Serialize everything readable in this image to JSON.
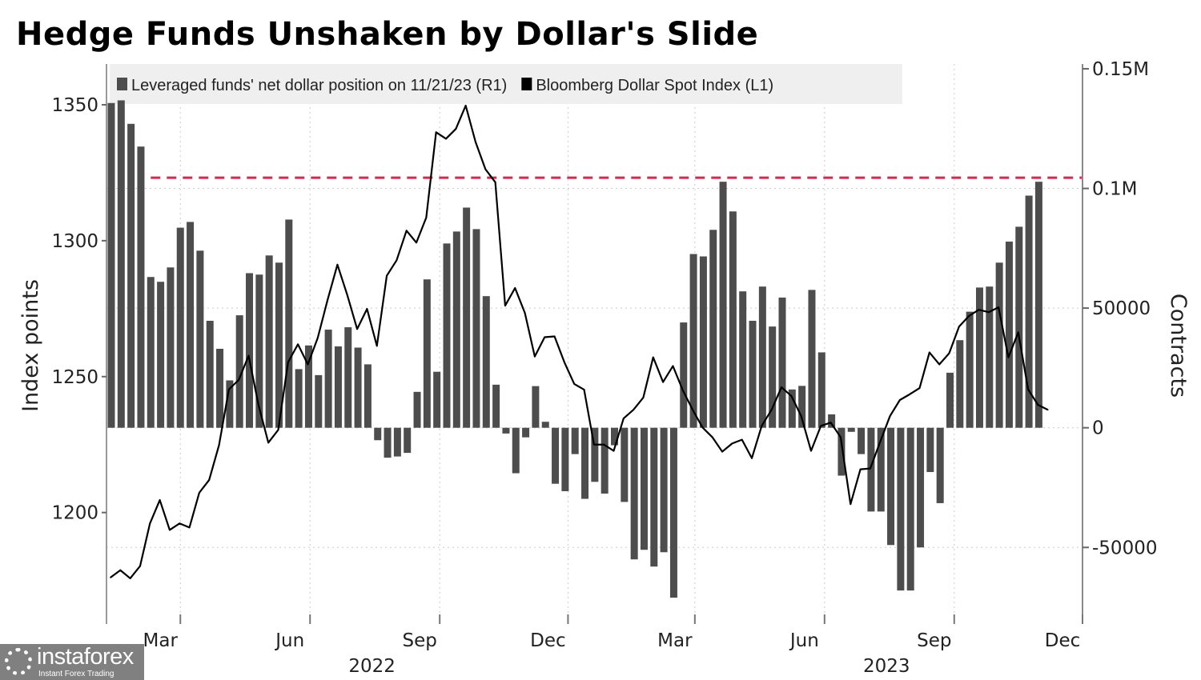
{
  "title": "Hedge Funds Unshaken by Dollar's Slide",
  "watermark": {
    "name": "instaforex",
    "tagline": "Instant Forex Trading"
  },
  "chart_data": {
    "type": "bar+line",
    "title": "Hedge Funds Unshaken by Dollar's Slide",
    "ylabel_left": "Index points",
    "ylabel_right": "Contracts",
    "left_ylim": [
      1159,
      1365
    ],
    "right_ylim": [
      -82000,
      152000
    ],
    "left_ticks": [
      {
        "v": 1200,
        "label": "1200"
      },
      {
        "v": 1250,
        "label": "1250"
      },
      {
        "v": 1300,
        "label": "1300"
      },
      {
        "v": 1350,
        "label": "1350"
      }
    ],
    "right_ticks": [
      {
        "v": -50000,
        "label": "-50000"
      },
      {
        "v": 0,
        "label": "0"
      },
      {
        "v": 50000,
        "label": "50000"
      },
      {
        "v": 100000,
        "label": "0.1M"
      },
      {
        "v": 150000,
        "label": "0.15M"
      }
    ],
    "x_start": "2022-01-11",
    "x_end": "2023-12-01",
    "x_step_days": 7,
    "x_ticks": [
      {
        "date": "2022-03-01",
        "label": "Mar"
      },
      {
        "date": "2022-06-01",
        "label": "Jun"
      },
      {
        "date": "2022-09-01",
        "label": "Sep"
      },
      {
        "date": "2022-12-01",
        "label": "Dec"
      },
      {
        "date": "2023-03-01",
        "label": "Mar"
      },
      {
        "date": "2023-06-01",
        "label": "Jun"
      },
      {
        "date": "2023-09-01",
        "label": "Sep"
      },
      {
        "date": "2023-12-01",
        "label": "Dec"
      }
    ],
    "year_labels": [
      {
        "date": "2022-07-15",
        "label": "2022"
      },
      {
        "date": "2023-07-15",
        "label": "2023"
      }
    ],
    "grid": true,
    "legend_position": "top",
    "legend": [
      {
        "label": "Leveraged funds' net dollar position on 11/21/23 (R1)",
        "color": "#4d4d4d"
      },
      {
        "label": "Bloomberg Dollar Spot Index (L1)",
        "color": "#000000"
      }
    ],
    "series": [
      {
        "name": "Leveraged funds' net dollar position (contracts)",
        "axis": "right",
        "type": "bar",
        "color": "#4d4d4d",
        "values": [
          135700,
          136800,
          127000,
          117500,
          63000,
          61000,
          67000,
          83600,
          86000,
          74000,
          44700,
          33000,
          19800,
          47000,
          64600,
          64000,
          72000,
          69000,
          87000,
          24500,
          34400,
          22000,
          41000,
          34000,
          42000,
          33500,
          26500,
          -5200,
          -12500,
          -12000,
          -10500,
          15000,
          62000,
          23400,
          77000,
          82000,
          92000,
          83000,
          55000,
          18000,
          -2400,
          -19000,
          -4000,
          17400,
          2500,
          -23400,
          -26500,
          -11000,
          -29700,
          -22600,
          -27500,
          -7300,
          -31000,
          -55000,
          -51000,
          -58000,
          -52000,
          -71000,
          44000,
          72600,
          71600,
          82700,
          102800,
          90400,
          57000,
          44700,
          59000,
          42300,
          54400,
          16000,
          17500,
          57600,
          31500,
          5600,
          -20000,
          -1700,
          -11000,
          -35000,
          -35000,
          -49000,
          -68000,
          -68000,
          -50000,
          -18500,
          -31500,
          23000,
          36600,
          48500,
          58600,
          59000,
          69000,
          77800,
          84000,
          97000,
          102800
        ]
      },
      {
        "name": "Bloomberg Dollar Spot Index",
        "axis": "left",
        "type": "line",
        "color": "#000000",
        "values": [
          1176.1,
          1178.8,
          1175.8,
          1180.3,
          1196,
          1204.6,
          1193.6,
          1196,
          1194.5,
          1207.3,
          1212,
          1224.8,
          1245.3,
          1248.8,
          1257.7,
          1239.6,
          1225.7,
          1230.4,
          1255.3,
          1261.9,
          1254.5,
          1264.2,
          1278.2,
          1291.2,
          1280,
          1267.5,
          1274.9,
          1261.3,
          1287.1,
          1292.8,
          1303.7,
          1299.3,
          1308.5,
          1339.9,
          1337.5,
          1341.1,
          1349.7,
          1336.3,
          1326.3,
          1321.5,
          1276.1,
          1282.6,
          1273.4,
          1257.4,
          1264.5,
          1264.8,
          1255.3,
          1247.3,
          1245.2,
          1225,
          1225,
          1222.7,
          1234.6,
          1237.8,
          1242.3,
          1257.1,
          1248,
          1253.9,
          1245,
          1237.8,
          1231.3,
          1227.7,
          1222.4,
          1225.4,
          1226.8,
          1220,
          1231.9,
          1237.8,
          1246.1,
          1242.9,
          1235.5,
          1222.7,
          1231.9,
          1233.1,
          1227.7,
          1203.1,
          1215.9,
          1216.2,
          1226,
          1235.5,
          1241.4,
          1243.5,
          1245.8,
          1258.9,
          1254.5,
          1258.6,
          1268.4,
          1272.3,
          1274.6,
          1273.7,
          1275.5,
          1257.1,
          1266.3,
          1245.3,
          1239.6,
          1237.8
        ]
      }
    ],
    "reference_line": {
      "axis": "right",
      "value": 104500,
      "color": "#d6284f",
      "style": "dashed",
      "from_date": "2022-02-08"
    }
  }
}
